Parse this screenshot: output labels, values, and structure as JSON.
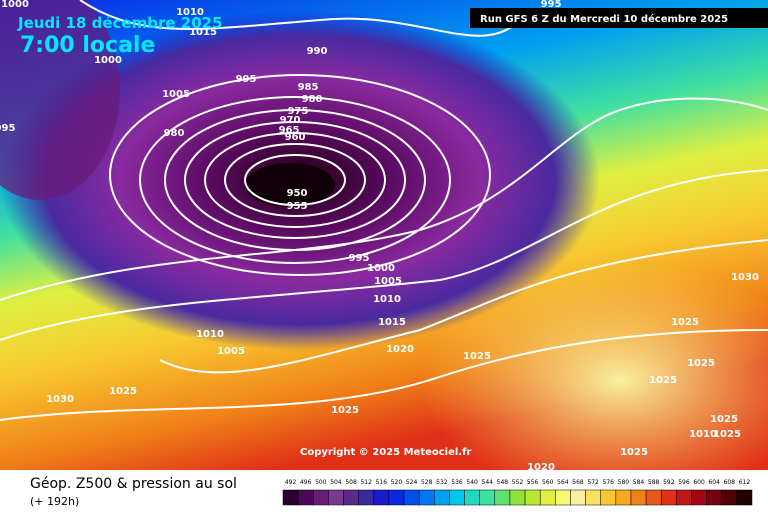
{
  "header": {
    "date": "Jeudi 18 décembre 2025",
    "time": "7:00 locale",
    "run": "Run GFS 6 Z du Mercredi 10 décembre 2025",
    "copyright": "Copyright © 2025 Meteociel.fr"
  },
  "footer": {
    "title": "Géop. Z500 & pression au sol",
    "lead": "(+ 192h)"
  },
  "isobar_labels": [
    1010,
    1015,
    1000,
    990,
    995,
    985,
    980,
    1005,
    975,
    970,
    965,
    960,
    980,
    950,
    955,
    995,
    1000,
    1005,
    1010,
    1015,
    1010,
    1005,
    1020,
    1025,
    1025,
    1030,
    1025,
    1020,
    1030,
    1025,
    1025,
    1025,
    1025,
    1010,
    1025,
    1025,
    995,
    1000,
    995
  ],
  "scale": {
    "labels": [
      492,
      496,
      500,
      504,
      508,
      512,
      516,
      520,
      524,
      528,
      532,
      536,
      540,
      544,
      548,
      552,
      556,
      560,
      564,
      568,
      572,
      576,
      580,
      584,
      588,
      592,
      596,
      600,
      604,
      608,
      612
    ],
    "colors": [
      "#2a0030",
      "#4a0a55",
      "#6a1a78",
      "#7a3a90",
      "#5a2a8a",
      "#3a2aa0",
      "#1a1ac8",
      "#0a28e8",
      "#0050f0",
      "#0078f0",
      "#00a0f0",
      "#00c8e8",
      "#20d8c0",
      "#40e0a0",
      "#60e070",
      "#90e040",
      "#b8e830",
      "#e0f040",
      "#f8f870",
      "#f8f0a0",
      "#f8e060",
      "#f8c830",
      "#f8a820",
      "#f08018",
      "#e85818",
      "#e03018",
      "#c01818",
      "#a00818",
      "#780010",
      "#500008",
      "#200000"
    ]
  }
}
